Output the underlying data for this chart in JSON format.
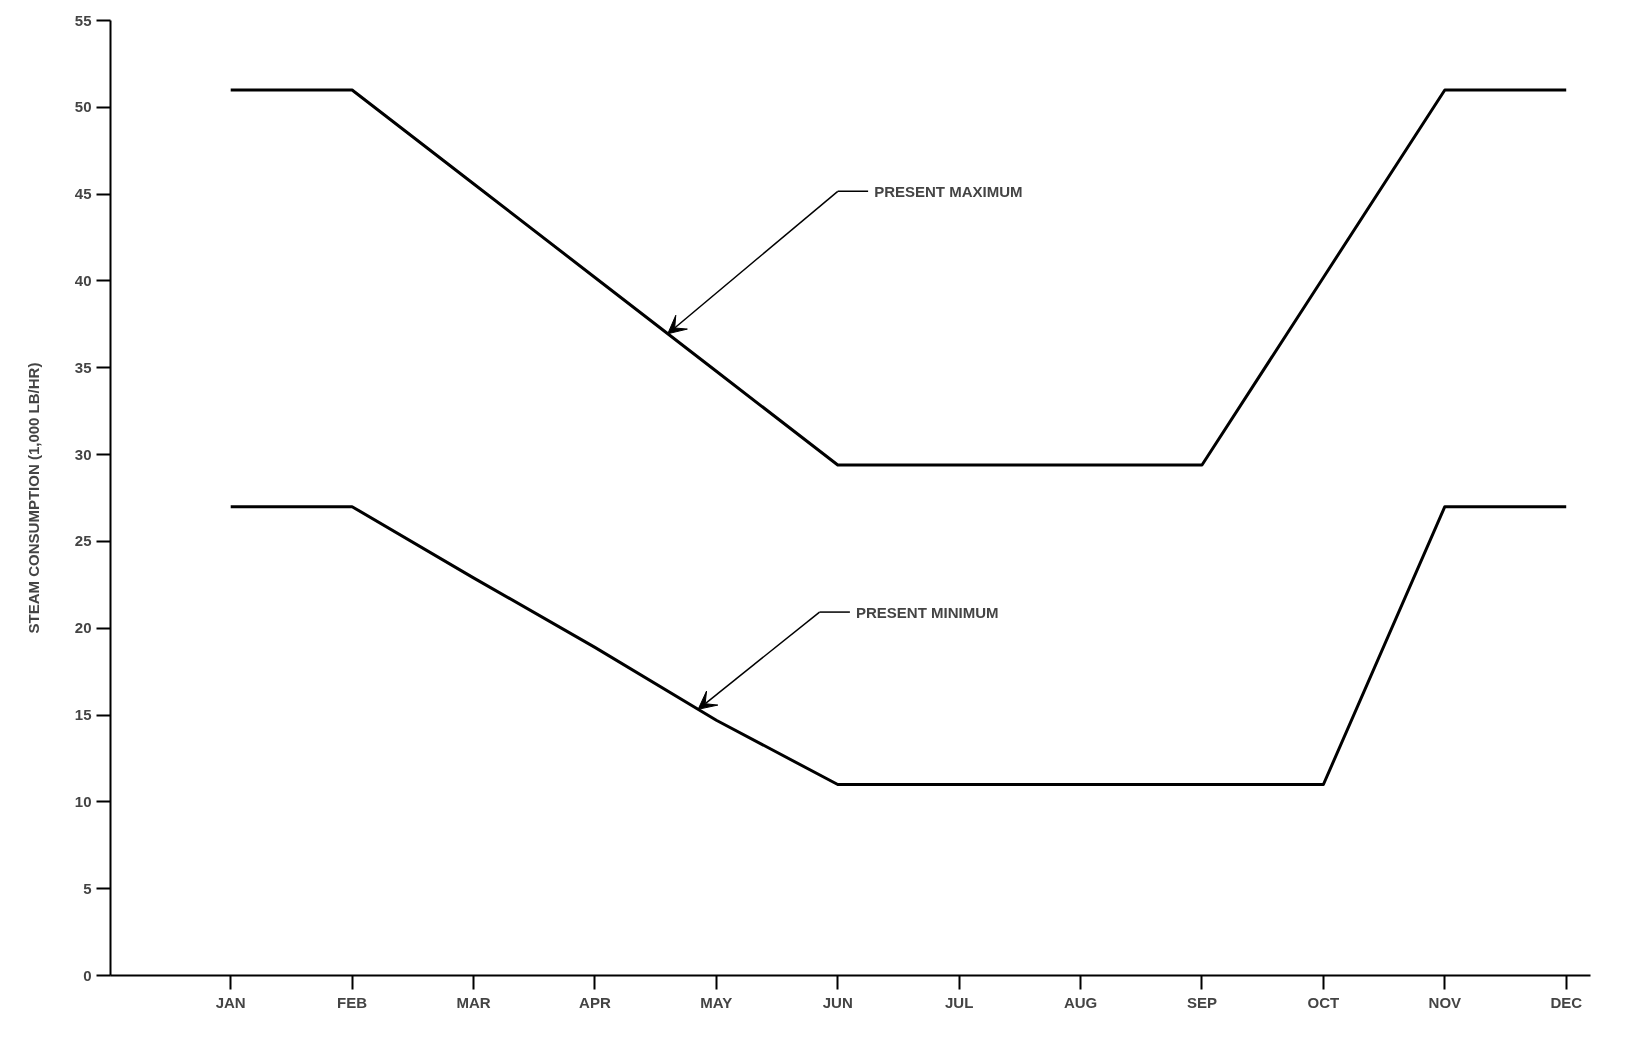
{
  "chart_data": {
    "type": "line",
    "ylabel": "STEAM CONSUMPTION (1,000 LB/HR)",
    "categories": [
      "JAN",
      "FEB",
      "MAR",
      "APR",
      "MAY",
      "JUN",
      "JUL",
      "AUG",
      "SEP",
      "OCT",
      "NOV",
      "DEC"
    ],
    "series": [
      {
        "color": "#000000",
        "values": [
          51,
          51,
          45.6,
          40.2,
          34.8,
          29.4,
          29.4,
          29.4,
          29.4,
          40.2,
          51,
          51
        ]
      },
      {
        "color": "#000000",
        "values": [
          27,
          27,
          22.9,
          18.9,
          14.7,
          11,
          11,
          11,
          11,
          11,
          27,
          27
        ]
      }
    ],
    "ylim": [
      0,
      55
    ],
    "yticks": [
      0,
      5,
      10,
      15,
      20,
      25,
      30,
      35,
      40,
      45,
      50,
      55
    ],
    "annotations": [
      "PRESENT MAXIMUM",
      "PRESENT MINIMUM"
    ],
    "grid": false,
    "marker": "none",
    "line_style": "solid"
  }
}
